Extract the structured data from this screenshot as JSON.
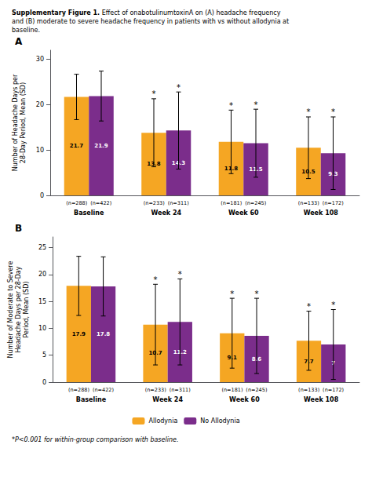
{
  "chart_data": [
    {
      "type": "bar",
      "title": "Supplementary Figure 1.",
      "subtitle": " Effect of onabotulinumtoxinA on (A) headache frequency\nand (B) moderate to severe headache frequency in patients with vs without allodynia at\nbaseline.",
      "panel_label": "A",
      "categories": [
        "Baseline",
        "Week 24",
        "Week 60",
        "Week 108"
      ],
      "series": [
        {
          "name": "Allodynia",
          "color": "#F5A623",
          "values": [
            21.7,
            13.8,
            11.8,
            10.5
          ],
          "errors": [
            5.0,
            7.5,
            7.0,
            6.8
          ],
          "n_labels": [
            "(n=288)",
            "(n=233)",
            "(n=181)",
            "(n=133)"
          ]
        },
        {
          "name": "No Allodynia",
          "color": "#7B2D8B",
          "values": [
            21.9,
            14.3,
            11.5,
            9.3
          ],
          "errors": [
            5.5,
            8.5,
            7.5,
            8.0
          ],
          "n_labels": [
            "(n=422)",
            "(n=311)",
            "(n=245)",
            "(n=172)"
          ]
        }
      ],
      "ylabel": "Number of Headache Days per\n28-Day Period, Mean (SD)",
      "ylim": [
        0,
        32
      ],
      "yticks": [
        0,
        10,
        20,
        30
      ],
      "significant": [
        false,
        true,
        true,
        true
      ],
      "significance_mark": "*",
      "data_labels": true,
      "grid": false
    },
    {
      "type": "bar",
      "panel_label": "B",
      "categories": [
        "Baseline",
        "Week 24",
        "Week 60",
        "Week 108"
      ],
      "series": [
        {
          "name": "Allodynia",
          "color": "#F5A623",
          "values": [
            17.9,
            10.7,
            9.1,
            7.7
          ],
          "errors": [
            5.5,
            7.5,
            6.5,
            5.5
          ],
          "n_labels": [
            "(n=288)",
            "(n=233)",
            "(n=181)",
            "(n=133)"
          ]
        },
        {
          "name": "No Allodynia",
          "color": "#7B2D8B",
          "values": [
            17.8,
            11.2,
            8.6,
            7.0
          ],
          "errors": [
            5.5,
            8.0,
            7.0,
            6.5
          ],
          "n_labels": [
            "(n=422)",
            "(n=311)",
            "(n=245)",
            "(n=172)"
          ]
        }
      ],
      "ylabel": "Number of Moderate to Severe\nHeadache Days per 28-Day\nPeriod, Mean (SD)",
      "ylim": [
        0,
        27
      ],
      "yticks": [
        0,
        5,
        10,
        15,
        20,
        25
      ],
      "significant": [
        false,
        true,
        true,
        true
      ],
      "significance_mark": "*",
      "data_labels": true,
      "grid": false,
      "legend": "bottom",
      "annotations": [
        "*P<0.001 for within-group comparison with baseline."
      ]
    }
  ]
}
